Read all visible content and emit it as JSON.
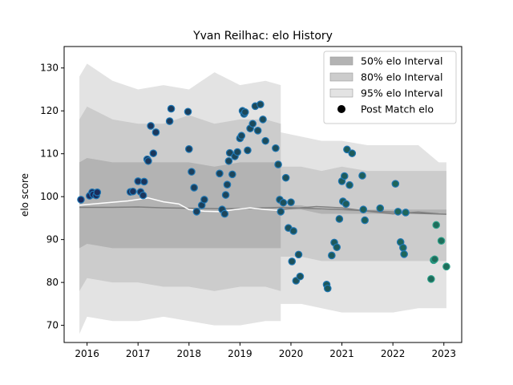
{
  "chart_data": {
    "type": "scatter",
    "title": "Yvan Reilhac: elo History",
    "xlabel": "",
    "ylabel": "elo score",
    "xlim": [
      2015.55,
      2023.35
    ],
    "ylim": [
      66,
      135
    ],
    "x_ticks": [
      2016,
      2017,
      2018,
      2019,
      2020,
      2021,
      2022,
      2023
    ],
    "x_tick_labels": [
      "2016",
      "2017",
      "2018",
      "2019",
      "2020",
      "2021",
      "2022",
      "2023"
    ],
    "y_ticks": [
      70,
      80,
      90,
      100,
      110,
      120,
      130
    ],
    "y_tick_labels": [
      "70",
      "80",
      "90",
      "100",
      "110",
      "120",
      "130"
    ],
    "grid": false,
    "legend_position": "top-right",
    "legend": [
      {
        "label": "50% elo Interval",
        "kind": "band",
        "color": "#b3b3b3"
      },
      {
        "label": "80% elo Interval",
        "kind": "band",
        "color": "#cccccc"
      },
      {
        "label": "95% elo Interval",
        "kind": "band",
        "color": "#e3e3e3"
      },
      {
        "label": "Post Match elo",
        "kind": "marker",
        "color": "#000000"
      }
    ],
    "split_x": 2019.8,
    "bands": {
      "x": [
        2015.85,
        2016.0,
        2016.5,
        2017.0,
        2017.5,
        2018.0,
        2018.5,
        2019.0,
        2019.5,
        2019.8,
        2019.8,
        2020.2,
        2020.6,
        2021.0,
        2021.5,
        2022.0,
        2022.5,
        2022.9,
        2023.05
      ],
      "p95_upper": [
        128,
        131,
        127,
        125,
        126,
        125,
        129,
        126,
        127,
        126,
        115,
        114,
        113,
        113,
        112,
        112,
        112,
        108,
        108
      ],
      "p95_lower": [
        68,
        72,
        71,
        71,
        72,
        71,
        70,
        70,
        71,
        71,
        75,
        75,
        74,
        73,
        73,
        73,
        74,
        74,
        74
      ],
      "p80_upper": [
        118,
        121,
        118,
        117,
        117,
        119,
        117,
        118,
        118,
        117,
        107,
        107,
        106,
        107,
        106,
        106,
        106,
        106,
        106
      ],
      "p80_lower": [
        78,
        81,
        80,
        80,
        79,
        79,
        78,
        79,
        79,
        78,
        86,
        86,
        85,
        85,
        85,
        85,
        85,
        85,
        85
      ],
      "p50_upper": [
        108,
        109,
        108,
        108,
        108,
        108,
        107,
        108,
        108,
        108,
        98,
        98,
        97,
        97,
        97,
        97,
        97,
        97,
        97
      ],
      "p50_lower": [
        88,
        89,
        88,
        88,
        88,
        88,
        88,
        88,
        88,
        88,
        97,
        97,
        96,
        96,
        96,
        96,
        96,
        96,
        96
      ]
    },
    "median_line": {
      "x": [
        2015.85,
        2016.5,
        2017.0,
        2017.5,
        2018.0,
        2018.5,
        2019.0,
        2019.5,
        2019.8,
        2020.5,
        2021.0,
        2021.5,
        2022.0,
        2022.5,
        2023.05
      ],
      "y": [
        97.5,
        97.5,
        97.6,
        97.4,
        97.3,
        97.2,
        97.2,
        97.4,
        97.5,
        97.2,
        97.0,
        96.7,
        96.4,
        96.1,
        95.9
      ]
    },
    "historical_line": {
      "x": [
        2015.85,
        2016.3,
        2016.8,
        2017.2,
        2017.5,
        2017.8,
        2018.0,
        2018.3,
        2018.6,
        2018.9,
        2019.2,
        2019.5,
        2019.75
      ],
      "y": [
        98.0,
        98.5,
        99.0,
        99.7,
        98.8,
        98.3,
        97.0,
        96.6,
        96.5,
        97.0,
        97.4,
        97.0,
        96.8
      ]
    },
    "forecast_line": {
      "x": [
        2019.8,
        2020.0,
        2020.5,
        2021.0,
        2021.5,
        2022.0,
        2022.5,
        2022.9
      ],
      "y": [
        97.0,
        97.2,
        97.7,
        97.4,
        96.6,
        96.0,
        96.4,
        96.0
      ]
    },
    "points": {
      "x": [
        2015.88,
        2016.05,
        2016.1,
        2016.12,
        2016.18,
        2016.2,
        2016.85,
        2016.9,
        2017.0,
        2017.05,
        2017.1,
        2017.12,
        2017.18,
        2017.2,
        2017.25,
        2017.3,
        2017.35,
        2017.62,
        2017.65,
        2017.98,
        2018.0,
        2018.05,
        2018.1,
        2018.15,
        2018.25,
        2018.3,
        2018.6,
        2018.65,
        2018.7,
        2018.72,
        2018.75,
        2018.78,
        2018.8,
        2018.85,
        2018.9,
        2018.95,
        2019.0,
        2019.03,
        2019.05,
        2019.08,
        2019.1,
        2019.15,
        2019.2,
        2019.25,
        2019.3,
        2019.35,
        2019.4,
        2019.45,
        2019.5,
        2019.7,
        2019.75,
        2019.78,
        2019.8,
        2019.85,
        2019.9,
        2019.95,
        2020.0,
        2020.02,
        2020.05,
        2020.1,
        2020.15,
        2020.18,
        2020.7,
        2020.72,
        2020.8,
        2020.85,
        2020.9,
        2020.95,
        2021.0,
        2021.02,
        2021.05,
        2021.08,
        2021.1,
        2021.15,
        2021.2,
        2021.4,
        2021.42,
        2021.45,
        2021.75,
        2022.05,
        2022.1,
        2022.15,
        2022.2,
        2022.22,
        2022.25,
        2022.75,
        2022.8,
        2022.82,
        2022.85,
        2022.95,
        2023.05
      ],
      "y": [
        99.3,
        100.2,
        101.0,
        100.5,
        100.3,
        101.0,
        101.1,
        101.2,
        103.6,
        101.1,
        100.3,
        103.5,
        108.7,
        108.3,
        116.5,
        110.1,
        115.0,
        117.6,
        120.5,
        119.8,
        111.1,
        105.8,
        102.1,
        96.5,
        98.0,
        99.3,
        105.4,
        97.0,
        96.0,
        100.4,
        102.8,
        108.3,
        110.2,
        105.2,
        109.4,
        110.4,
        113.6,
        114.2,
        120.0,
        119.3,
        119.7,
        110.8,
        115.9,
        117.0,
        121.1,
        115.4,
        121.5,
        118.0,
        113.0,
        111.3,
        107.5,
        99.3,
        96.5,
        98.6,
        104.4,
        92.7,
        98.7,
        84.9,
        92.0,
        80.4,
        86.5,
        81.4,
        79.5,
        78.6,
        86.3,
        89.3,
        88.2,
        94.8,
        103.6,
        98.9,
        104.8,
        98.3,
        111.0,
        102.7,
        110.1,
        104.9,
        97.0,
        94.5,
        97.3,
        103.0,
        96.5,
        89.4,
        88.1,
        86.6,
        96.3,
        80.8,
        85.2,
        85.4,
        93.4,
        89.7,
        83.7
      ]
    },
    "colors": {
      "band95": "#e3e3e3",
      "band80": "#cccccc",
      "band50": "#b3b3b3",
      "median": "#7f7f7f",
      "historical": "#ffffff",
      "forecast": "#808080",
      "marker_edge": "#1f77b4",
      "marker_fill_start": "#1a2a5c",
      "marker_fill_end": "#1f6e5a"
    }
  }
}
